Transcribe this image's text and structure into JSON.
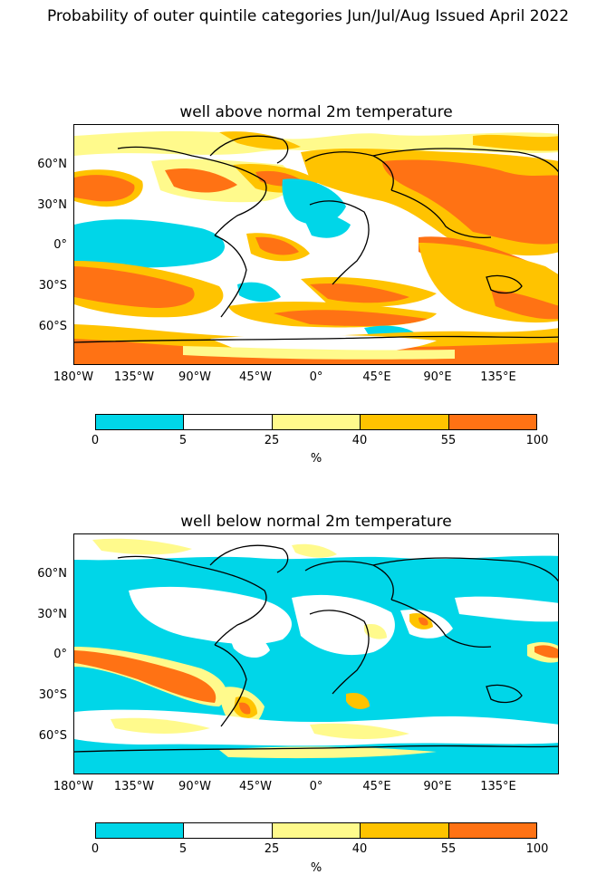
{
  "figure_title": "Probability of outer quintile categories Jun/Jul/Aug Issued April 2022",
  "panels": [
    {
      "title": "well above normal 2m temperature"
    },
    {
      "title": "well below normal 2m temperature"
    }
  ],
  "lat_labels": [
    "60°N",
    "30°N",
    "0°",
    "30°S",
    "60°S"
  ],
  "lon_labels": [
    "180°W",
    "135°W",
    "90°W",
    "45°W",
    "0°",
    "45°E",
    "90°E",
    "135°E"
  ],
  "colorbar": {
    "boundaries": [
      "0",
      "5",
      "25",
      "40",
      "55",
      "100"
    ],
    "colors": [
      "#00d6e8",
      "#ffffff",
      "#fffa8c",
      "#ffc300",
      "#ff7214"
    ],
    "unit": "%"
  }
}
